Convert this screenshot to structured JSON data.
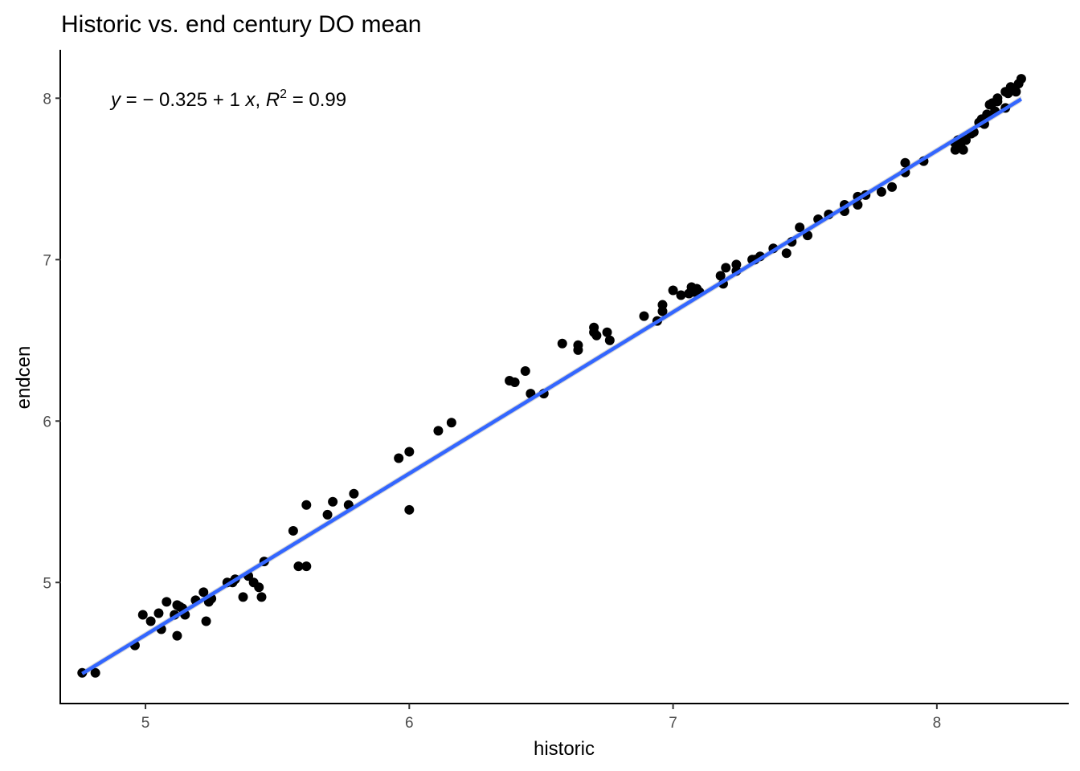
{
  "chart_data": {
    "type": "scatter",
    "title": "Historic vs. end century DO mean",
    "xlabel": "historic",
    "ylabel": "endcen",
    "xlim": [
      4.68,
      8.5
    ],
    "ylim": [
      4.25,
      8.3
    ],
    "x_ticks": [
      5,
      6,
      7,
      8
    ],
    "y_ticks": [
      5,
      6,
      7,
      8
    ],
    "x_tick_labels": [
      "5",
      "6",
      "7",
      "8"
    ],
    "y_tick_labels": [
      "5",
      "6",
      "7",
      "8"
    ],
    "grid": false,
    "legend": "none",
    "regression": {
      "method": "lm",
      "intercept": -0.325,
      "slope": 1,
      "r_squared": 0.99,
      "x_range": [
        4.76,
        8.32
      ],
      "color": "#3366FF",
      "label_parts": {
        "y_var": "y",
        "eq_mid": " = − 0.325 + 1 ",
        "x_var": "x",
        "sep": ", ",
        "r_var": "R",
        "r_sup": "2",
        "r_val": " = 0.99"
      }
    },
    "points": [
      [
        4.76,
        4.44
      ],
      [
        4.81,
        4.44
      ],
      [
        4.96,
        4.61
      ],
      [
        4.99,
        4.8
      ],
      [
        5.02,
        4.76
      ],
      [
        5.05,
        4.81
      ],
      [
        5.06,
        4.71
      ],
      [
        5.08,
        4.88
      ],
      [
        5.11,
        4.8
      ],
      [
        5.12,
        4.86
      ],
      [
        5.12,
        4.67
      ],
      [
        5.13,
        4.85
      ],
      [
        5.14,
        4.84
      ],
      [
        5.15,
        4.8
      ],
      [
        5.19,
        4.89
      ],
      [
        5.22,
        4.94
      ],
      [
        5.23,
        4.76
      ],
      [
        5.24,
        4.88
      ],
      [
        5.25,
        4.9
      ],
      [
        5.31,
        5.0
      ],
      [
        5.33,
        5.0
      ],
      [
        5.34,
        5.02
      ],
      [
        5.37,
        4.91
      ],
      [
        5.39,
        5.04
      ],
      [
        5.41,
        5.0
      ],
      [
        5.43,
        4.97
      ],
      [
        5.44,
        4.91
      ],
      [
        5.45,
        5.13
      ],
      [
        5.56,
        5.32
      ],
      [
        5.58,
        5.1
      ],
      [
        5.61,
        5.1
      ],
      [
        5.61,
        5.48
      ],
      [
        5.69,
        5.42
      ],
      [
        5.71,
        5.5
      ],
      [
        5.77,
        5.48
      ],
      [
        5.79,
        5.55
      ],
      [
        5.96,
        5.77
      ],
      [
        6.0,
        5.81
      ],
      [
        6.0,
        5.45
      ],
      [
        6.11,
        5.94
      ],
      [
        6.16,
        5.99
      ],
      [
        6.38,
        6.25
      ],
      [
        6.4,
        6.24
      ],
      [
        6.44,
        6.31
      ],
      [
        6.46,
        6.17
      ],
      [
        6.51,
        6.17
      ],
      [
        6.58,
        6.48
      ],
      [
        6.64,
        6.47
      ],
      [
        6.64,
        6.44
      ],
      [
        6.7,
        6.58
      ],
      [
        6.7,
        6.55
      ],
      [
        6.71,
        6.53
      ],
      [
        6.75,
        6.55
      ],
      [
        6.76,
        6.5
      ],
      [
        6.89,
        6.65
      ],
      [
        6.94,
        6.62
      ],
      [
        6.96,
        6.72
      ],
      [
        6.96,
        6.68
      ],
      [
        7.0,
        6.81
      ],
      [
        7.03,
        6.78
      ],
      [
        7.06,
        6.79
      ],
      [
        7.07,
        6.83
      ],
      [
        7.08,
        6.8
      ],
      [
        7.09,
        6.82
      ],
      [
        7.1,
        6.8
      ],
      [
        7.18,
        6.9
      ],
      [
        7.19,
        6.85
      ],
      [
        7.2,
        6.95
      ],
      [
        7.24,
        6.93
      ],
      [
        7.24,
        6.97
      ],
      [
        7.3,
        7.0
      ],
      [
        7.31,
        7.0
      ],
      [
        7.33,
        7.02
      ],
      [
        7.38,
        7.07
      ],
      [
        7.43,
        7.04
      ],
      [
        7.45,
        7.11
      ],
      [
        7.48,
        7.2
      ],
      [
        7.51,
        7.15
      ],
      [
        7.55,
        7.25
      ],
      [
        7.59,
        7.28
      ],
      [
        7.65,
        7.3
      ],
      [
        7.65,
        7.34
      ],
      [
        7.7,
        7.34
      ],
      [
        7.7,
        7.39
      ],
      [
        7.73,
        7.4
      ],
      [
        7.79,
        7.42
      ],
      [
        7.83,
        7.45
      ],
      [
        7.88,
        7.54
      ],
      [
        7.88,
        7.6
      ],
      [
        7.95,
        7.61
      ],
      [
        8.07,
        7.72
      ],
      [
        8.07,
        7.68
      ],
      [
        8.08,
        7.74
      ],
      [
        8.09,
        7.7
      ],
      [
        8.1,
        7.75
      ],
      [
        8.1,
        7.68
      ],
      [
        8.11,
        7.74
      ],
      [
        8.13,
        7.78
      ],
      [
        8.14,
        7.79
      ],
      [
        8.16,
        7.85
      ],
      [
        8.17,
        7.87
      ],
      [
        8.18,
        7.84
      ],
      [
        8.19,
        7.9
      ],
      [
        8.2,
        7.96
      ],
      [
        8.21,
        7.97
      ],
      [
        8.22,
        7.92
      ],
      [
        8.23,
        7.98
      ],
      [
        8.23,
        8.0
      ],
      [
        8.26,
        7.94
      ],
      [
        8.26,
        8.04
      ],
      [
        8.27,
        8.03
      ],
      [
        8.28,
        8.07
      ],
      [
        8.29,
        8.05
      ],
      [
        8.3,
        8.04
      ],
      [
        8.31,
        8.09
      ],
      [
        8.32,
        8.12
      ]
    ]
  }
}
